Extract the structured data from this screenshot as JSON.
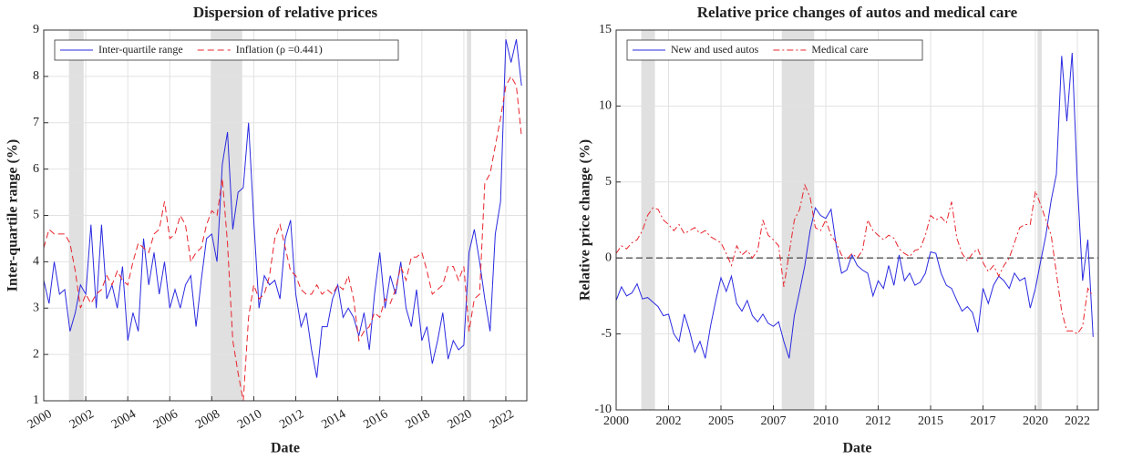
{
  "chart_data": [
    {
      "type": "line",
      "title": "Dispersion of relative prices",
      "x_label": "Date",
      "y_label": "Inter-quartile range (%)",
      "xlim": [
        2000,
        2023
      ],
      "xticks": [
        2000,
        2002,
        2004,
        2006,
        2008,
        2010,
        2012,
        2014,
        2016,
        2018,
        2020,
        2022
      ],
      "ylim": [
        1,
        9
      ],
      "yticks": [
        1,
        2,
        3,
        4,
        5,
        6,
        7,
        8,
        9
      ],
      "grid": true,
      "legend": "upper left",
      "shaded_periods": [
        [
          2001.2,
          2001.9
        ],
        [
          2007.95,
          2009.45
        ],
        [
          2020.15,
          2020.35
        ]
      ],
      "x": [
        2000,
        2000.25,
        2000.5,
        2000.75,
        2001,
        2001.25,
        2001.5,
        2001.75,
        2002,
        2002.25,
        2002.5,
        2002.75,
        2003,
        2003.25,
        2003.5,
        2003.75,
        2004,
        2004.25,
        2004.5,
        2004.75,
        2005,
        2005.25,
        2005.5,
        2005.75,
        2006,
        2006.25,
        2006.5,
        2006.75,
        2007,
        2007.25,
        2007.5,
        2007.75,
        2008,
        2008.25,
        2008.5,
        2008.75,
        2009,
        2009.25,
        2009.5,
        2009.75,
        2010,
        2010.25,
        2010.5,
        2010.75,
        2011,
        2011.25,
        2011.5,
        2011.75,
        2012,
        2012.25,
        2012.5,
        2012.75,
        2013,
        2013.25,
        2013.5,
        2013.75,
        2014,
        2014.25,
        2014.5,
        2014.75,
        2015,
        2015.25,
        2015.5,
        2015.75,
        2016,
        2016.25,
        2016.5,
        2016.75,
        2017,
        2017.25,
        2017.5,
        2017.75,
        2018,
        2018.25,
        2018.5,
        2018.75,
        2019,
        2019.25,
        2019.5,
        2019.75,
        2020,
        2020.25,
        2020.5,
        2020.75,
        2021,
        2021.25,
        2021.5,
        2021.75,
        2022,
        2022.25,
        2022.5,
        2022.75
      ],
      "series": [
        {
          "name": "Inter-quartile range",
          "color": "#2a2ae0",
          "linestyle": "solid",
          "values": [
            3.6,
            3.1,
            4.0,
            3.3,
            3.4,
            2.5,
            2.9,
            3.5,
            3.3,
            4.8,
            3.0,
            4.8,
            3.2,
            3.5,
            3.0,
            3.9,
            2.3,
            2.9,
            2.5,
            4.5,
            3.5,
            4.2,
            3.3,
            4.0,
            3.0,
            3.4,
            3.0,
            3.5,
            3.7,
            2.6,
            3.6,
            4.5,
            4.6,
            4.0,
            6.1,
            6.8,
            4.7,
            5.5,
            5.6,
            7.0,
            4.9,
            3.0,
            3.7,
            3.5,
            3.6,
            3.2,
            4.5,
            4.9,
            3.3,
            2.6,
            2.9,
            2.1,
            1.5,
            2.6,
            2.6,
            3.2,
            3.5,
            2.8,
            3.0,
            2.8,
            2.4,
            2.9,
            2.1,
            3.3,
            4.2,
            3.0,
            3.7,
            3.3,
            4.0,
            3.0,
            2.6,
            3.4,
            2.3,
            2.6,
            1.8,
            2.3,
            2.9,
            1.9,
            2.3,
            2.1,
            2.2,
            4.2,
            4.7,
            4.0,
            3.2,
            2.5,
            4.6,
            5.3,
            8.8,
            8.3,
            8.8,
            7.8
          ]
        },
        {
          "name": "Inflation (ρ =0.441)",
          "color": "#e8242c",
          "linestyle": "dashed",
          "values": [
            4.3,
            4.7,
            4.6,
            4.6,
            4.6,
            4.4,
            3.8,
            3.0,
            3.3,
            3.1,
            3.3,
            3.4,
            3.7,
            3.5,
            3.8,
            3.6,
            3.5,
            4.0,
            4.4,
            4.3,
            4.2,
            4.6,
            4.7,
            5.3,
            4.5,
            4.6,
            5.0,
            4.8,
            4.0,
            4.2,
            4.3,
            4.8,
            5.1,
            5.0,
            5.8,
            4.4,
            2.3,
            1.6,
            1.0,
            2.8,
            3.5,
            3.2,
            3.3,
            3.7,
            4.5,
            4.8,
            4.3,
            3.8,
            3.7,
            3.4,
            3.3,
            3.3,
            3.5,
            3.3,
            3.4,
            3.3,
            3.5,
            3.4,
            3.7,
            3.2,
            2.3,
            2.5,
            2.6,
            2.9,
            2.8,
            3.2,
            3.1,
            3.4,
            3.9,
            3.6,
            4.1,
            4.1,
            4.2,
            3.8,
            3.3,
            3.4,
            3.5,
            3.9,
            3.9,
            3.6,
            3.9,
            2.5,
            3.2,
            3.3,
            5.7,
            5.9,
            6.5,
            7.1,
            7.8,
            8.0,
            7.8,
            6.7
          ]
        }
      ]
    },
    {
      "type": "line",
      "title": "Relative price changes of autos and medical care",
      "x_label": "Date",
      "y_label": "Relative price change (%)",
      "xlim": [
        2000,
        2023
      ],
      "xticks": [
        2000,
        {
          "value": 2002.5,
          "label": "2002"
        },
        2005,
        {
          "value": 2007.5,
          "label": "2007"
        },
        2010,
        {
          "value": 2012.5,
          "label": "2012"
        },
        2015,
        {
          "value": 2017.5,
          "label": "2017"
        },
        2020,
        2022
      ],
      "ylim": [
        -10,
        15
      ],
      "yticks": [
        -10,
        -5,
        0,
        5,
        10,
        15
      ],
      "grid": true,
      "legend": "upper left",
      "hline": 0,
      "shaded_periods": [
        [
          2001.2,
          2001.85
        ],
        [
          2007.9,
          2009.45
        ],
        [
          2020.1,
          2020.3
        ]
      ],
      "x": [
        2000,
        2000.25,
        2000.5,
        2000.75,
        2001,
        2001.25,
        2001.5,
        2001.75,
        2002,
        2002.25,
        2002.5,
        2002.75,
        2003,
        2003.25,
        2003.5,
        2003.75,
        2004,
        2004.25,
        2004.5,
        2004.75,
        2005,
        2005.25,
        2005.5,
        2005.75,
        2006,
        2006.25,
        2006.5,
        2006.75,
        2007,
        2007.25,
        2007.5,
        2007.75,
        2008,
        2008.25,
        2008.5,
        2008.75,
        2009,
        2009.25,
        2009.5,
        2009.75,
        2010,
        2010.25,
        2010.5,
        2010.75,
        2011,
        2011.25,
        2011.5,
        2011.75,
        2012,
        2012.25,
        2012.5,
        2012.75,
        2013,
        2013.25,
        2013.5,
        2013.75,
        2014,
        2014.25,
        2014.5,
        2014.75,
        2015,
        2015.25,
        2015.5,
        2015.75,
        2016,
        2016.25,
        2016.5,
        2016.75,
        2017,
        2017.25,
        2017.5,
        2017.75,
        2018,
        2018.25,
        2018.5,
        2018.75,
        2019,
        2019.25,
        2019.5,
        2019.75,
        2020,
        2020.25,
        2020.5,
        2020.75,
        2021,
        2021.25,
        2021.5,
        2021.75,
        2022,
        2022.25,
        2022.5,
        2022.75
      ],
      "series": [
        {
          "name": "New and used autos",
          "color": "#2a2ae0",
          "linestyle": "solid",
          "values": [
            -2.8,
            -1.9,
            -2.5,
            -2.3,
            -1.7,
            -2.7,
            -2.6,
            -2.9,
            -3.2,
            -3.8,
            -3.7,
            -5.0,
            -5.5,
            -3.7,
            -4.8,
            -6.2,
            -5.5,
            -6.6,
            -4.5,
            -2.8,
            -1.3,
            -2.2,
            -1.2,
            -3.0,
            -3.5,
            -2.8,
            -3.8,
            -4.2,
            -3.7,
            -4.3,
            -4.5,
            -4.2,
            -5.5,
            -6.6,
            -3.8,
            -2.2,
            -0.5,
            1.8,
            3.3,
            2.8,
            2.6,
            3.2,
            0.8,
            -1.0,
            -0.8,
            0.2,
            -0.5,
            -0.8,
            -1.0,
            -2.5,
            -1.5,
            -2.0,
            -0.5,
            -1.8,
            0.2,
            -1.5,
            -1.0,
            -1.8,
            -1.6,
            -1.0,
            0.4,
            0.3,
            -1.0,
            -1.8,
            -2.0,
            -2.8,
            -3.5,
            -3.2,
            -3.6,
            -4.9,
            -2.0,
            -3.0,
            -1.8,
            -1.2,
            -1.5,
            -2.0,
            -1.0,
            -1.5,
            -1.3,
            -3.3,
            -2.0,
            -0.2,
            1.5,
            3.8,
            5.5,
            13.3,
            9.0,
            13.5,
            5.0,
            -1.5,
            1.2,
            -5.2
          ]
        },
        {
          "name": "Medical care",
          "color": "#e8242c",
          "linestyle": "dashdot",
          "values": [
            0.3,
            0.8,
            0.6,
            1.0,
            1.2,
            1.8,
            2.8,
            3.3,
            3.2,
            2.5,
            2.2,
            1.8,
            2.2,
            1.6,
            1.8,
            2.0,
            1.6,
            1.8,
            1.4,
            1.2,
            1.0,
            0.3,
            -0.5,
            0.8,
            0.2,
            0.5,
            0.0,
            0.5,
            2.5,
            1.5,
            1.2,
            0.8,
            -1.9,
            0.3,
            2.5,
            3.2,
            4.8,
            4.0,
            2.0,
            1.8,
            2.5,
            1.5,
            1.0,
            0.2,
            -0.1,
            0.3,
            0.0,
            0.5,
            2.5,
            1.8,
            1.5,
            1.2,
            1.5,
            1.3,
            0.6,
            0.3,
            0.1,
            0.5,
            0.6,
            1.5,
            2.8,
            2.5,
            2.7,
            2.3,
            3.7,
            1.3,
            0.3,
            -0.2,
            0.3,
            0.6,
            -0.3,
            -0.9,
            -0.5,
            -1.2,
            -0.5,
            0.0,
            1.0,
            2.0,
            2.2,
            2.2,
            4.4,
            3.5,
            2.5,
            1.5,
            -1.0,
            -3.5,
            -4.8,
            -4.8,
            -5.0,
            -4.5,
            -2.0,
            -2.5
          ]
        }
      ]
    }
  ]
}
